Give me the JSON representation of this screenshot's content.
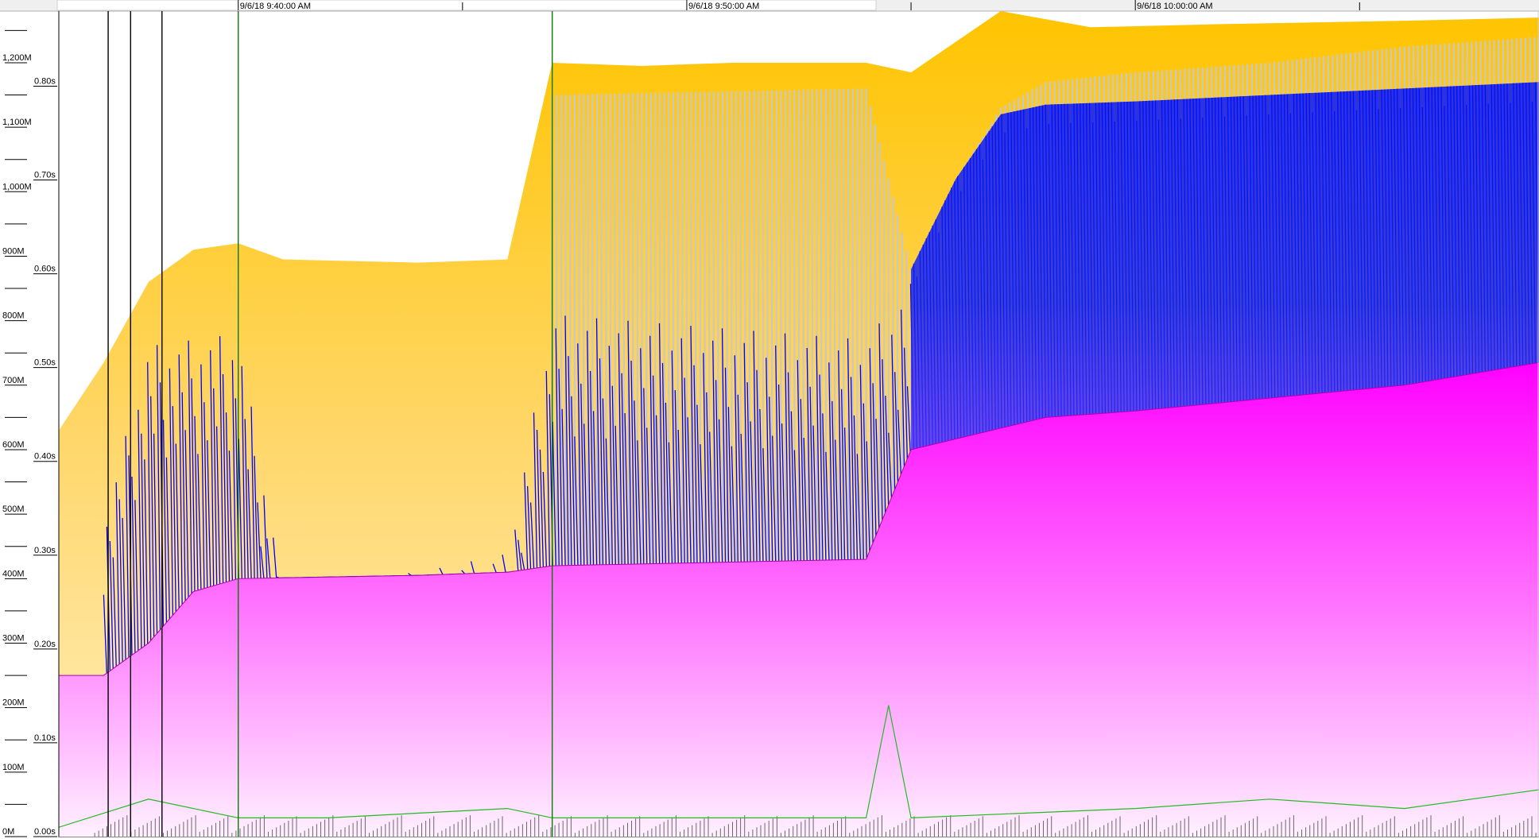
{
  "chart_data": {
    "type": "area",
    "title": "",
    "xlabel": "",
    "ylabel": "",
    "time_ticks": [
      "9/6/18 9:40:00 AM",
      "9/6/18 9:50:00 AM",
      "9/6/18 10:00:00 AM"
    ],
    "x_range": [
      "9/6/18 9:36:00 AM",
      "9/6/18 10:09:00 AM"
    ],
    "left_axis": {
      "unit": "M",
      "ylim": [
        0,
        1280
      ],
      "major_step": 100,
      "minor_step": 50,
      "tick_labels": [
        "0M",
        "100M",
        "200M",
        "300M",
        "400M",
        "500M",
        "600M",
        "700M",
        "800M",
        "900M",
        "1,000M",
        "1,100M",
        "1,200M"
      ]
    },
    "right_axis": {
      "unit": "s",
      "ylim": [
        0,
        0.88
      ],
      "major_step": 0.1,
      "tick_labels": [
        "0.00s",
        "0.10s",
        "0.20s",
        "0.30s",
        "0.40s",
        "0.50s",
        "0.60s",
        "0.70s",
        "0.80s"
      ]
    },
    "grid": false,
    "legend": "none",
    "series": [
      {
        "role": "committed heap area",
        "color": "#ffc800",
        "points_M": [
          [
            "9:36",
            630
          ],
          [
            "9:37",
            735
          ],
          [
            "9:38",
            860
          ],
          [
            "9:39",
            910
          ],
          [
            "9:40",
            920
          ],
          [
            "9:41",
            895
          ],
          [
            "9:44",
            890
          ],
          [
            "9:46",
            895
          ],
          [
            "9:47",
            1200
          ],
          [
            "9:49",
            1195
          ],
          [
            "9:51",
            1200
          ],
          [
            "9:54",
            1200
          ],
          [
            "9:55",
            1185
          ],
          [
            "9:57",
            1280
          ],
          [
            "9:59",
            1255
          ],
          [
            "10:02",
            1260
          ],
          [
            "10:06",
            1265
          ],
          [
            "10:09",
            1270
          ]
        ]
      },
      {
        "role": "used heap sawtooth (gen 2 peaks)",
        "color": "#c8c8c8",
        "points_M": [
          [
            "9:47",
            1150
          ],
          [
            "9:54",
            1160
          ],
          [
            "9:55",
            880
          ],
          [
            "9:56",
            1020
          ],
          [
            "9:57",
            1130
          ],
          [
            "9:58",
            1170
          ],
          [
            "10:00",
            1185
          ],
          [
            "10:03",
            1200
          ],
          [
            "10:06",
            1225
          ],
          [
            "10:09",
            1240
          ]
        ]
      },
      {
        "role": "used heap sawtooth (gen 0/1)",
        "color": "#0000ff",
        "points_M": [
          [
            "9:37",
            500
          ],
          [
            "9:38",
            780
          ],
          [
            "9:40",
            800
          ],
          [
            "9:41",
            400
          ],
          [
            "9:44",
            420
          ],
          [
            "9:46",
            450
          ],
          [
            "9:47",
            830
          ],
          [
            "9:54",
            790
          ],
          [
            "9:55",
            880
          ],
          [
            "9:56",
            1020
          ],
          [
            "9:57",
            1120
          ],
          [
            "9:58",
            1135
          ],
          [
            "10:00",
            1140
          ],
          [
            "10:03",
            1150
          ],
          [
            "10:06",
            1160
          ],
          [
            "10:09",
            1170
          ]
        ]
      },
      {
        "role": "used heap after GC area",
        "color": "#ff00ff",
        "points_M": [
          [
            "9:36",
            250
          ],
          [
            "9:37",
            250
          ],
          [
            "9:38",
            300
          ],
          [
            "9:39",
            380
          ],
          [
            "9:40",
            400
          ],
          [
            "9:44",
            405
          ],
          [
            "9:46",
            410
          ],
          [
            "9:47",
            420
          ],
          [
            "9:54",
            430
          ],
          [
            "9:55",
            600
          ],
          [
            "9:58",
            650
          ],
          [
            "10:00",
            660
          ],
          [
            "10:03",
            680
          ],
          [
            "10:06",
            700
          ],
          [
            "10:09",
            735
          ]
        ]
      },
      {
        "role": "GC pause time",
        "color": "#22bb22",
        "axis": "right",
        "points_s": [
          [
            "9:36",
            0.01
          ],
          [
            "9:38",
            0.04
          ],
          [
            "9:40",
            0.02
          ],
          [
            "9:42",
            0.02
          ],
          [
            "9:46",
            0.03
          ],
          [
            "9:47",
            0.02
          ],
          [
            "9:50",
            0.02
          ],
          [
            "9:54",
            0.02
          ],
          [
            "9:54.5",
            0.14
          ],
          [
            "9:55",
            0.02
          ],
          [
            "10:00",
            0.03
          ],
          [
            "10:03",
            0.04
          ],
          [
            "10:06",
            0.03
          ],
          [
            "10:09",
            0.05
          ]
        ]
      }
    ]
  }
}
